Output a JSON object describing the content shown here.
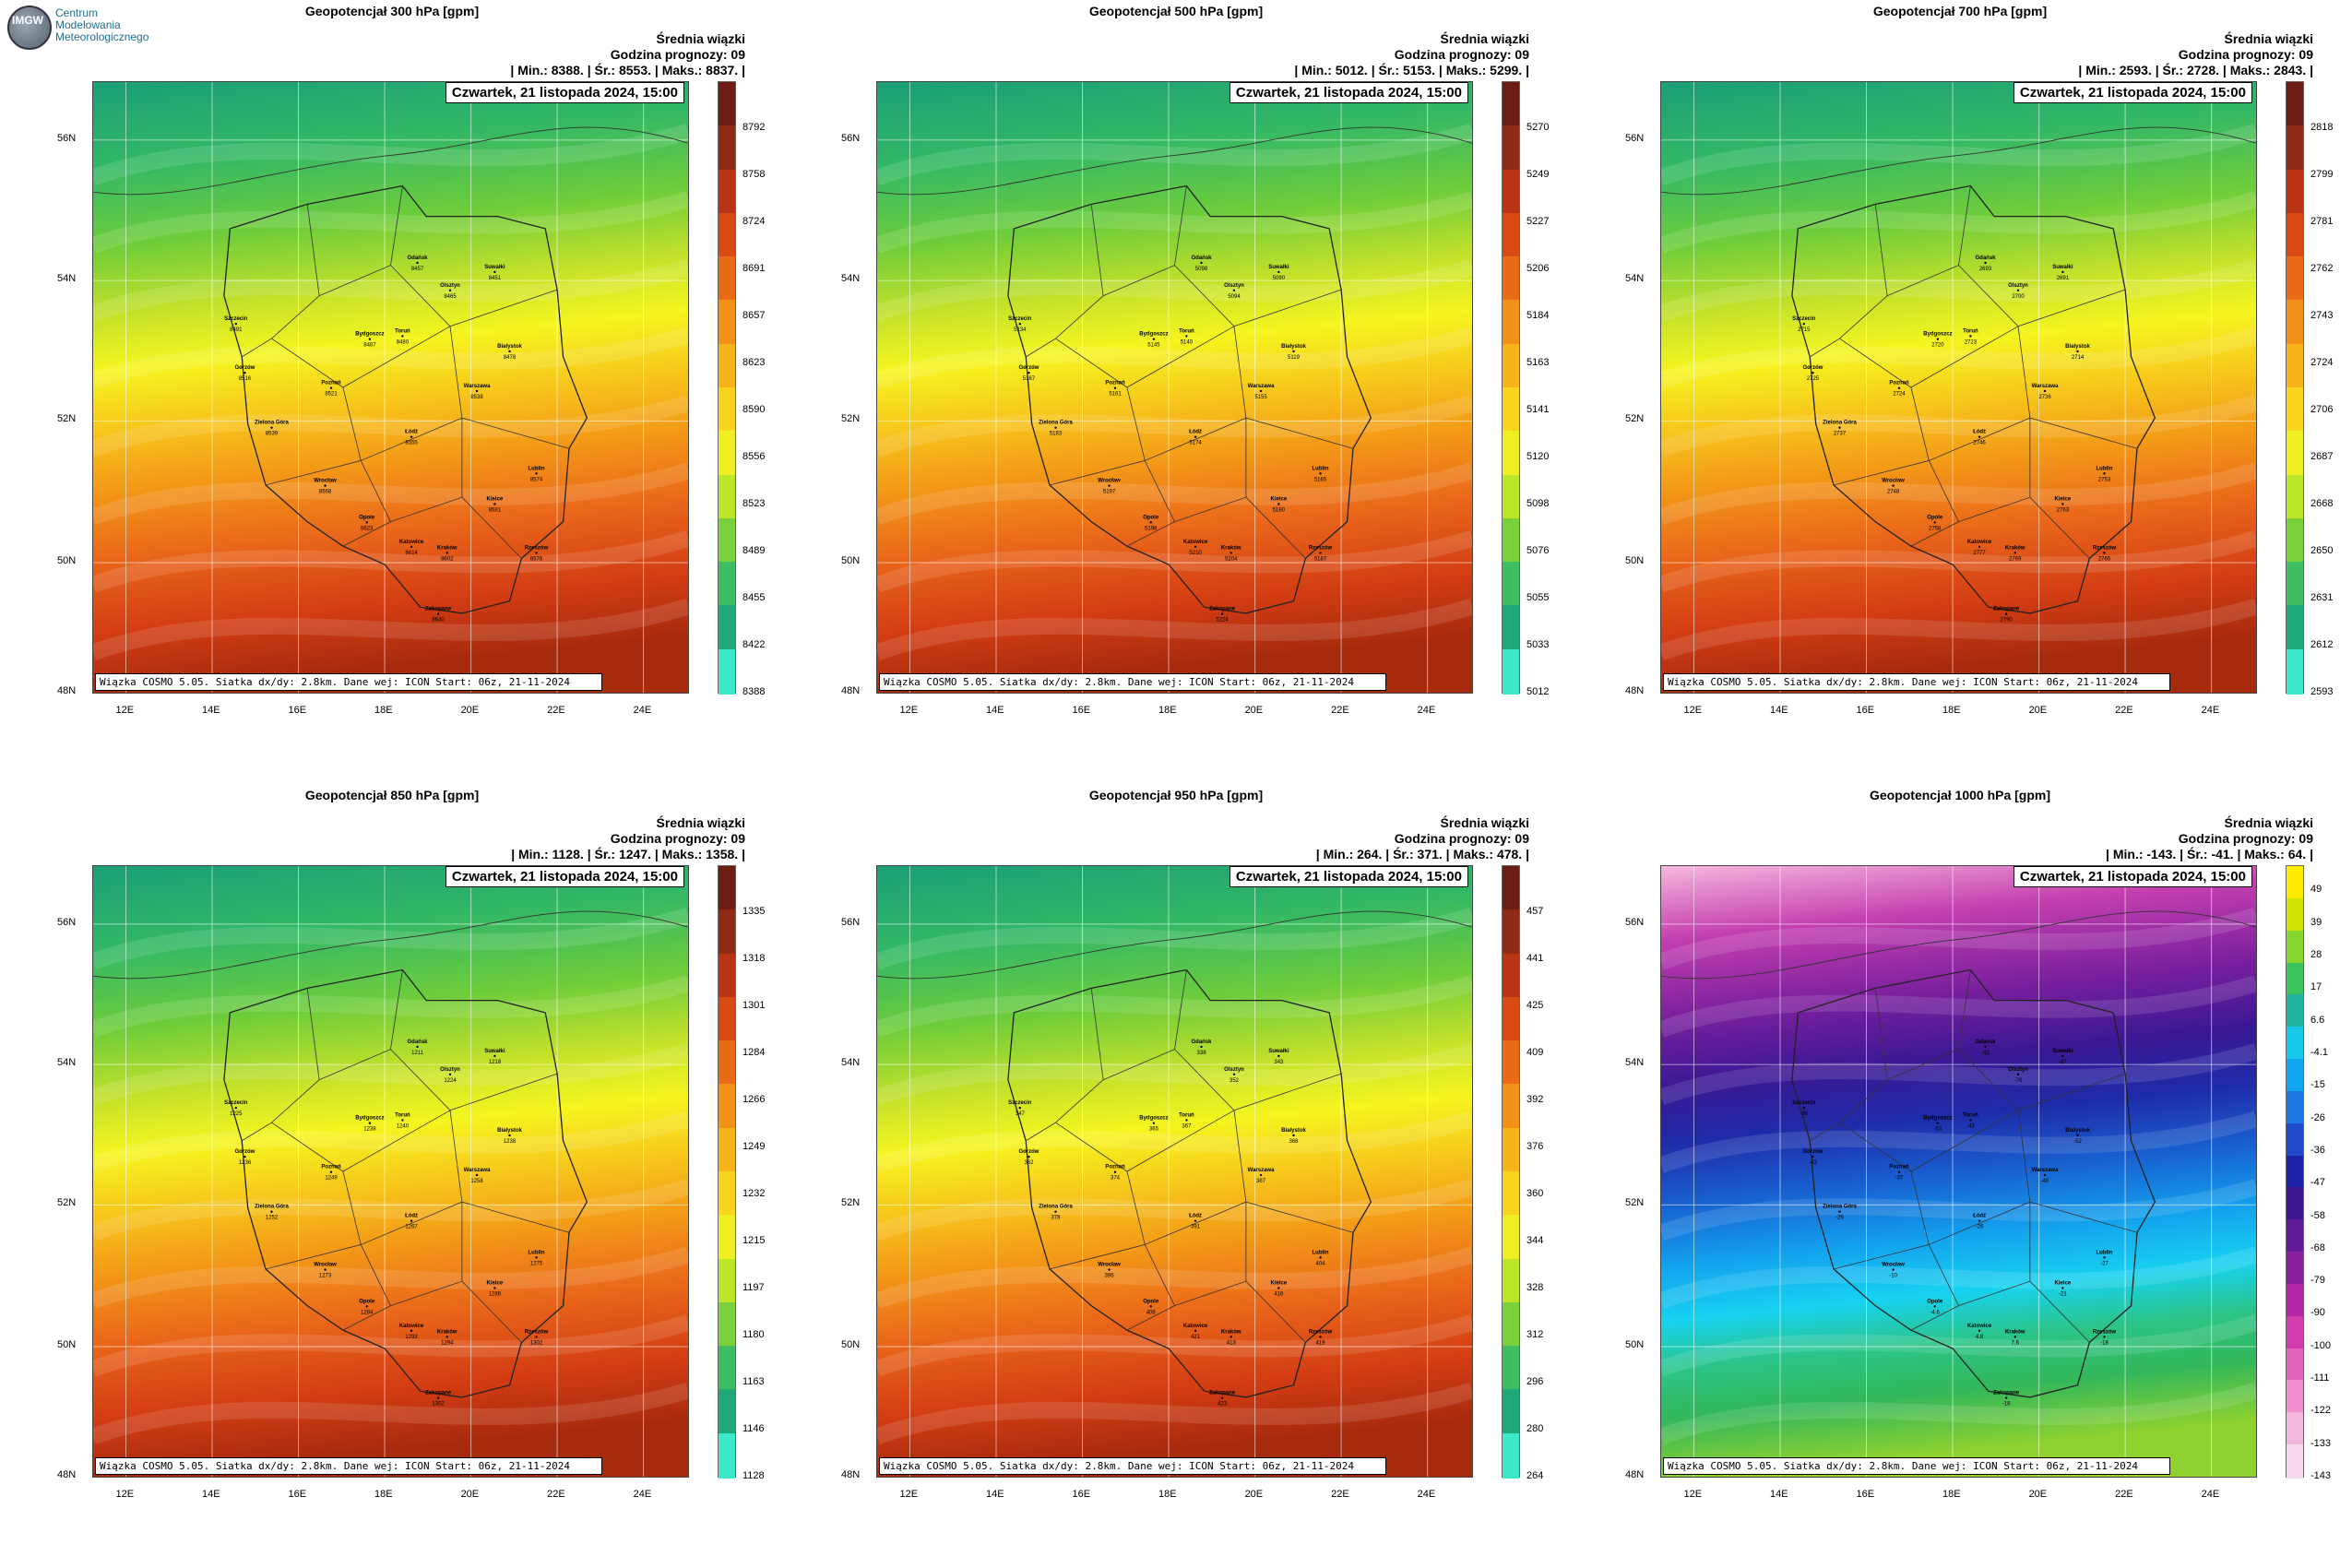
{
  "logo": {
    "mark": "IMGW",
    "line1": "Centrum",
    "line2": "Modelowania",
    "line3": "Meteorologicznego"
  },
  "common": {
    "ensemble": "Średnia wiązki",
    "hour": "Godzina prognozy: 09",
    "date": "Czwartek, 21 listopada 2024, 15:00",
    "footer": "Wiązka COSMO 5.05. Siatka dx/dy: 2.8km. Dane wej: ICON Start: 06z, 21-11-2024",
    "lat_labels": [
      "56N",
      "54N",
      "52N",
      "50N",
      "48N"
    ],
    "lon_labels": [
      "12E",
      "14E",
      "16E",
      "18E",
      "20E",
      "22E",
      "24E"
    ]
  },
  "panels": [
    {
      "title": "Geopotencjał 300 hPa [gpm]",
      "stats": "| Min.:   8388. | Śr.:   8553. | Maks.:   8837. |",
      "scale": "warm",
      "colorbar": [
        "8792",
        "8758",
        "8724",
        "8691",
        "8657",
        "8623",
        "8590",
        "8556",
        "8523",
        "8489",
        "8455",
        "8422",
        "8388"
      ],
      "cities": [
        [
          "Gdańsk",
          "8457"
        ],
        [
          "Olsztyn",
          "8465"
        ],
        [
          "Suwałki",
          "8451"
        ],
        [
          "Szczecin",
          "8491"
        ],
        [
          "Bydgoszcz",
          "8487"
        ],
        [
          "Toruń",
          "8480"
        ],
        [
          "Białystok",
          "8478"
        ],
        [
          "Gorzów",
          "8516"
        ],
        [
          "Poznań",
          "8521"
        ],
        [
          "Warszawa",
          "8538"
        ],
        [
          "Zielona Góra",
          "8539"
        ],
        [
          "Łódź",
          "8555"
        ],
        [
          "Lublin",
          "8574"
        ],
        [
          "Wrocław",
          "8568"
        ],
        [
          "Kielce",
          "8581"
        ],
        [
          "Opole",
          "8623"
        ],
        [
          "Katowice",
          "8614"
        ],
        [
          "Kraków",
          "8602"
        ],
        [
          "Rzeszów",
          "8576"
        ],
        [
          "Zakopane",
          "8640"
        ]
      ]
    },
    {
      "title": "Geopotencjał 500 hPa [gpm]",
      "stats": "| Min.:   5012. | Śr.:   5153. | Maks.:   5299. |",
      "scale": "warm",
      "colorbar": [
        "5270",
        "5249",
        "5227",
        "5206",
        "5184",
        "5163",
        "5141",
        "5120",
        "5098",
        "5076",
        "5055",
        "5033",
        "5012"
      ],
      "cities": [
        [
          "Gdańsk",
          "5098"
        ],
        [
          "Olsztyn",
          "5094"
        ],
        [
          "Suwałki",
          "5090"
        ],
        [
          "Szczecin",
          "5134"
        ],
        [
          "Bydgoszcz",
          "5145"
        ],
        [
          "Toruń",
          "5140"
        ],
        [
          "Białystok",
          "5119"
        ],
        [
          "Gorzów",
          "5167"
        ],
        [
          "Poznań",
          "5161"
        ],
        [
          "Warszawa",
          "5155"
        ],
        [
          "Zielona Góra",
          "5183"
        ],
        [
          "Łódź",
          "5174"
        ],
        [
          "Lublin",
          "5165"
        ],
        [
          "Wrocław",
          "5197"
        ],
        [
          "Kielce",
          "5180"
        ],
        [
          "Opole",
          "5198"
        ],
        [
          "Katowice",
          "5210"
        ],
        [
          "Kraków",
          "5204"
        ],
        [
          "Rzeszów",
          "5187"
        ],
        [
          "Zakopane",
          "5224"
        ]
      ]
    },
    {
      "title": "Geopotencjał 700 hPa [gpm]",
      "stats": "| Min.:   2593. | Śr.:   2728. | Maks.:   2843. |",
      "scale": "warm",
      "colorbar": [
        "2818",
        "2799",
        "2781",
        "2762",
        "2743",
        "2724",
        "2706",
        "2687",
        "2668",
        "2650",
        "2631",
        "2612",
        "2593"
      ],
      "cities": [
        [
          "Gdańsk",
          "2693"
        ],
        [
          "Olsztyn",
          "2700"
        ],
        [
          "Suwałki",
          "2691"
        ],
        [
          "Szczecin",
          "2715"
        ],
        [
          "Bydgoszcz",
          "2720"
        ],
        [
          "Toruń",
          "2723"
        ],
        [
          "Białystok",
          "2714"
        ],
        [
          "Gorzów",
          "2725"
        ],
        [
          "Poznań",
          "2724"
        ],
        [
          "Warszawa",
          "2736"
        ],
        [
          "Zielona Góra",
          "2737"
        ],
        [
          "Łódź",
          "2746"
        ],
        [
          "Lublin",
          "2753"
        ],
        [
          "Wrocław",
          "2748"
        ],
        [
          "Kielce",
          "2763"
        ],
        [
          "Opole",
          "2758"
        ],
        [
          "Katowice",
          "2777"
        ],
        [
          "Kraków",
          "2769"
        ],
        [
          "Rzeszów",
          "2765"
        ],
        [
          "Zakopane",
          "2790"
        ]
      ]
    },
    {
      "title": "Geopotencjał 850 hPa [gpm]",
      "stats": "| Min.:   1128. | Śr.:   1247. | Maks.:   1358. |",
      "scale": "warm",
      "colorbar": [
        "1335",
        "1318",
        "1301",
        "1284",
        "1266",
        "1249",
        "1232",
        "1215",
        "1197",
        "1180",
        "1163",
        "1146",
        "1128"
      ],
      "cities": [
        [
          "Gdańsk",
          "1211"
        ],
        [
          "Olsztyn",
          "1224"
        ],
        [
          "Suwałki",
          "1218"
        ],
        [
          "Szczecin",
          "1225"
        ],
        [
          "Bydgoszcz",
          "1238"
        ],
        [
          "Toruń",
          "1240"
        ],
        [
          "Białystok",
          "1238"
        ],
        [
          "Gorzów",
          "1236"
        ],
        [
          "Poznań",
          "1249"
        ],
        [
          "Warszawa",
          "1258"
        ],
        [
          "Zielona Góra",
          "1252"
        ],
        [
          "Łódź",
          "1267"
        ],
        [
          "Lublin",
          "1275"
        ],
        [
          "Wrocław",
          "1273"
        ],
        [
          "Kielce",
          "1286"
        ],
        [
          "Opole",
          "1284"
        ],
        [
          "Katowice",
          "1293"
        ],
        [
          "Kraków",
          "1294"
        ],
        [
          "Rzeszów",
          "1302"
        ],
        [
          "Zakopane",
          "1302"
        ]
      ]
    },
    {
      "title": "Geopotencjał 950 hPa [gpm]",
      "stats": "| Min.:    264. | Śr.:    371. | Maks.:    478. |",
      "scale": "warm",
      "colorbar": [
        "457",
        "441",
        "425",
        "409",
        "392",
        "376",
        "360",
        "344",
        "328",
        "312",
        "296",
        "280",
        "264"
      ],
      "cities": [
        [
          "Gdańsk",
          "338"
        ],
        [
          "Olsztyn",
          "352"
        ],
        [
          "Suwałki",
          "343"
        ],
        [
          "Szczecin",
          "347"
        ],
        [
          "Bydgoszcz",
          "365"
        ],
        [
          "Toruń",
          "367"
        ],
        [
          "Białystok",
          "368"
        ],
        [
          "Gorzów",
          "362"
        ],
        [
          "Poznań",
          "374"
        ],
        [
          "Warszawa",
          "387"
        ],
        [
          "Zielona Góra",
          "378"
        ],
        [
          "Łódź",
          "391"
        ],
        [
          "Lublin",
          "404"
        ],
        [
          "Wrocław",
          "396"
        ],
        [
          "Kielce",
          "416"
        ],
        [
          "Opole",
          "408"
        ],
        [
          "Katowice",
          "421"
        ],
        [
          "Kraków",
          "413"
        ],
        [
          "Rzeszów",
          "419"
        ],
        [
          "Zakopane",
          "423"
        ]
      ]
    },
    {
      "title": "Geopotencjał 1000 hPa [gpm]",
      "stats": "| Min.:   -143. | Śr.:    -41. | Maks.:     64. |",
      "scale": "cool",
      "colorbar": [
        "49",
        "39",
        "28",
        "17",
        "6.6",
        "-4.1",
        "-15",
        "-26",
        "-36",
        "-47",
        "-58",
        "-68",
        "-79",
        "-90",
        "-100",
        "-111",
        "-122",
        "-133",
        "-143"
      ],
      "cities": [
        [
          "Gdańsk",
          "-82"
        ],
        [
          "Olsztyn",
          "-76"
        ],
        [
          "Suwałki",
          "-87"
        ],
        [
          "Szczecin",
          "-86"
        ],
        [
          "Bydgoszcz",
          "-53"
        ],
        [
          "Toruń",
          "-43"
        ],
        [
          "Białystok",
          "-52"
        ],
        [
          "Gorzów",
          "-43"
        ],
        [
          "Poznań",
          "-37"
        ],
        [
          "Warszawa",
          "-40"
        ],
        [
          "Zielona Góra",
          "-26"
        ],
        [
          "Łódź",
          "-26"
        ],
        [
          "Lublin",
          "-27"
        ],
        [
          "Wrocław",
          "-10"
        ],
        [
          "Kielce",
          "-21"
        ],
        [
          "Opole",
          "-4.6"
        ],
        [
          "Katowice",
          "4.8"
        ],
        [
          "Kraków",
          "7.6"
        ],
        [
          "Rzeszów",
          "-18"
        ],
        [
          "Zakopane",
          "-18"
        ]
      ]
    }
  ]
}
